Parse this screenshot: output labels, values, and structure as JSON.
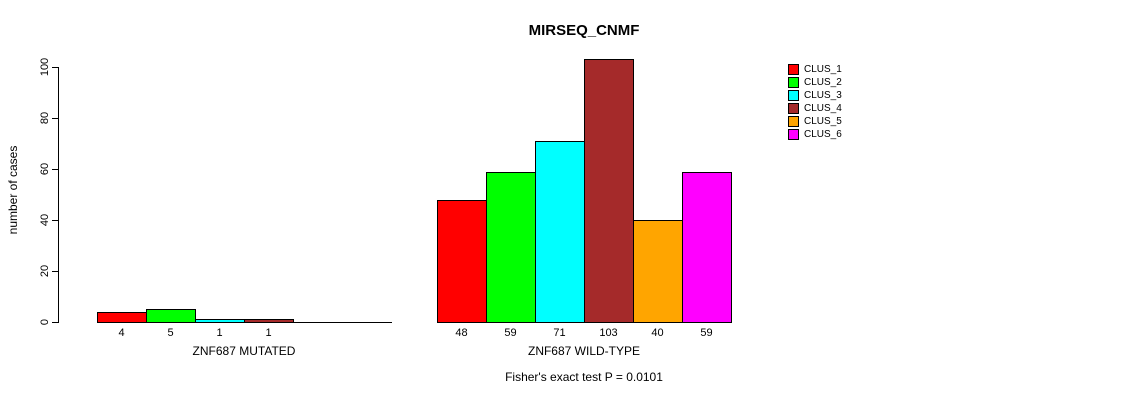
{
  "chart_data": {
    "type": "bar",
    "title": "MIRSEQ_CNMF",
    "ylabel": "number of cases",
    "xlabel": "",
    "ylim": [
      0,
      100
    ],
    "yticks": [
      0,
      20,
      40,
      60,
      80,
      100
    ],
    "grid": false,
    "legend_position": "top-right",
    "categories": [
      "ZNF687 MUTATED",
      "ZNF687 WILD-TYPE"
    ],
    "series": [
      {
        "name": "CLUS_1",
        "color": "#ff0000",
        "values": [
          4,
          48
        ]
      },
      {
        "name": "CLUS_2",
        "color": "#00ff00",
        "values": [
          5,
          59
        ]
      },
      {
        "name": "CLUS_3",
        "color": "#00ffff",
        "values": [
          1,
          71
        ]
      },
      {
        "name": "CLUS_4",
        "color": "#a52a2a",
        "values": [
          1,
          103
        ]
      },
      {
        "name": "CLUS_5",
        "color": "#ffa500",
        "values": [
          0,
          40
        ]
      },
      {
        "name": "CLUS_6",
        "color": "#ff00ff",
        "values": [
          0,
          59
        ]
      }
    ],
    "bar_labels_shown": true,
    "annotation": "Fisher's exact test P = 0.0101"
  }
}
